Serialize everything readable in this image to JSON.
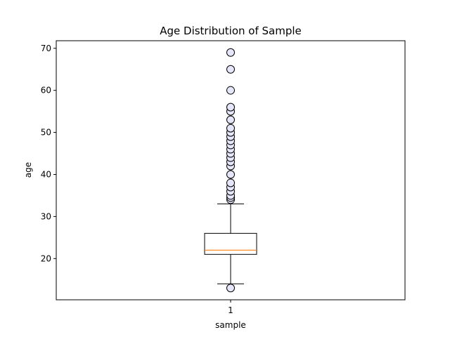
{
  "chart_data": {
    "type": "box",
    "title": "Age Distribution of Sample",
    "xlabel": "sample",
    "ylabel": "age",
    "categories": [
      "1"
    ],
    "y_ticks": [
      20,
      30,
      40,
      50,
      60,
      70
    ],
    "ylim": [
      10.2,
      71.8
    ],
    "grid": false,
    "boxes": [
      {
        "category": "1",
        "whisker_low": 14,
        "q1": 21,
        "median": 22,
        "q3": 26,
        "whisker_high": 33,
        "outliers": [
          13,
          34,
          34.5,
          35,
          36,
          37,
          38,
          40,
          42,
          43,
          44,
          45,
          46,
          47,
          48,
          49,
          50,
          51,
          53,
          55,
          56,
          60,
          65,
          69
        ]
      }
    ],
    "colors": {
      "box": "#000000",
      "median": "#ff7f0e",
      "outlier_fill": "#e6e6fa",
      "outlier_edge": "#000000"
    }
  }
}
